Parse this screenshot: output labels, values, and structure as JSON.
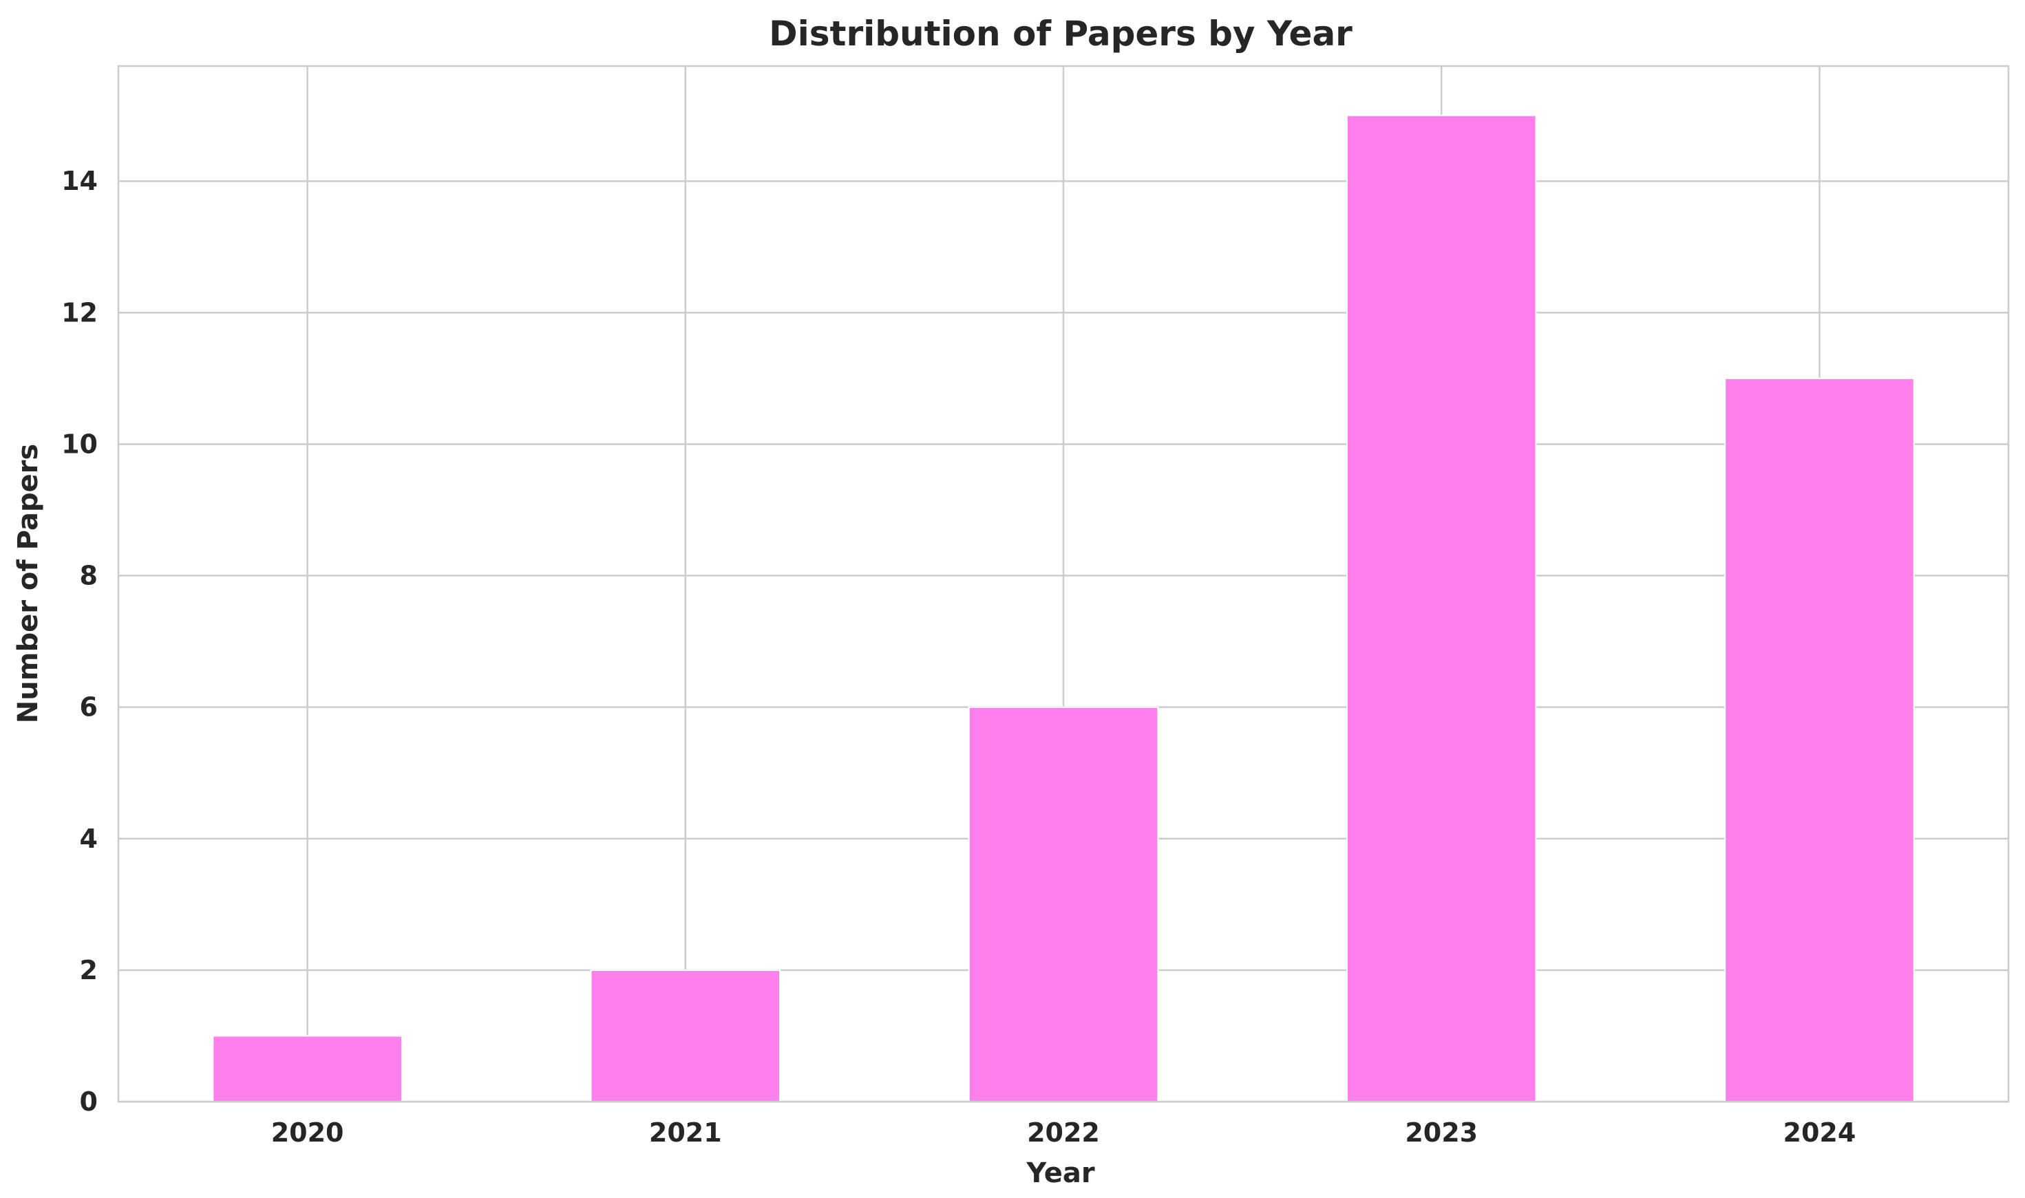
{
  "chart_data": {
    "type": "bar",
    "title": "Distribution of Papers by Year",
    "xlabel": "Year",
    "ylabel": "Number of Papers",
    "categories": [
      "2020",
      "2021",
      "2022",
      "2023",
      "2024"
    ],
    "values": [
      1,
      2,
      6,
      15,
      11
    ],
    "ylim": [
      0,
      15.75
    ],
    "yticks": [
      "0",
      "2",
      "4",
      "6",
      "8",
      "10",
      "12",
      "14"
    ],
    "grid": true,
    "legend": "none",
    "colors": {
      "bar": "#ff80ed",
      "grid": "#cccccc",
      "text": "#262626"
    }
  }
}
